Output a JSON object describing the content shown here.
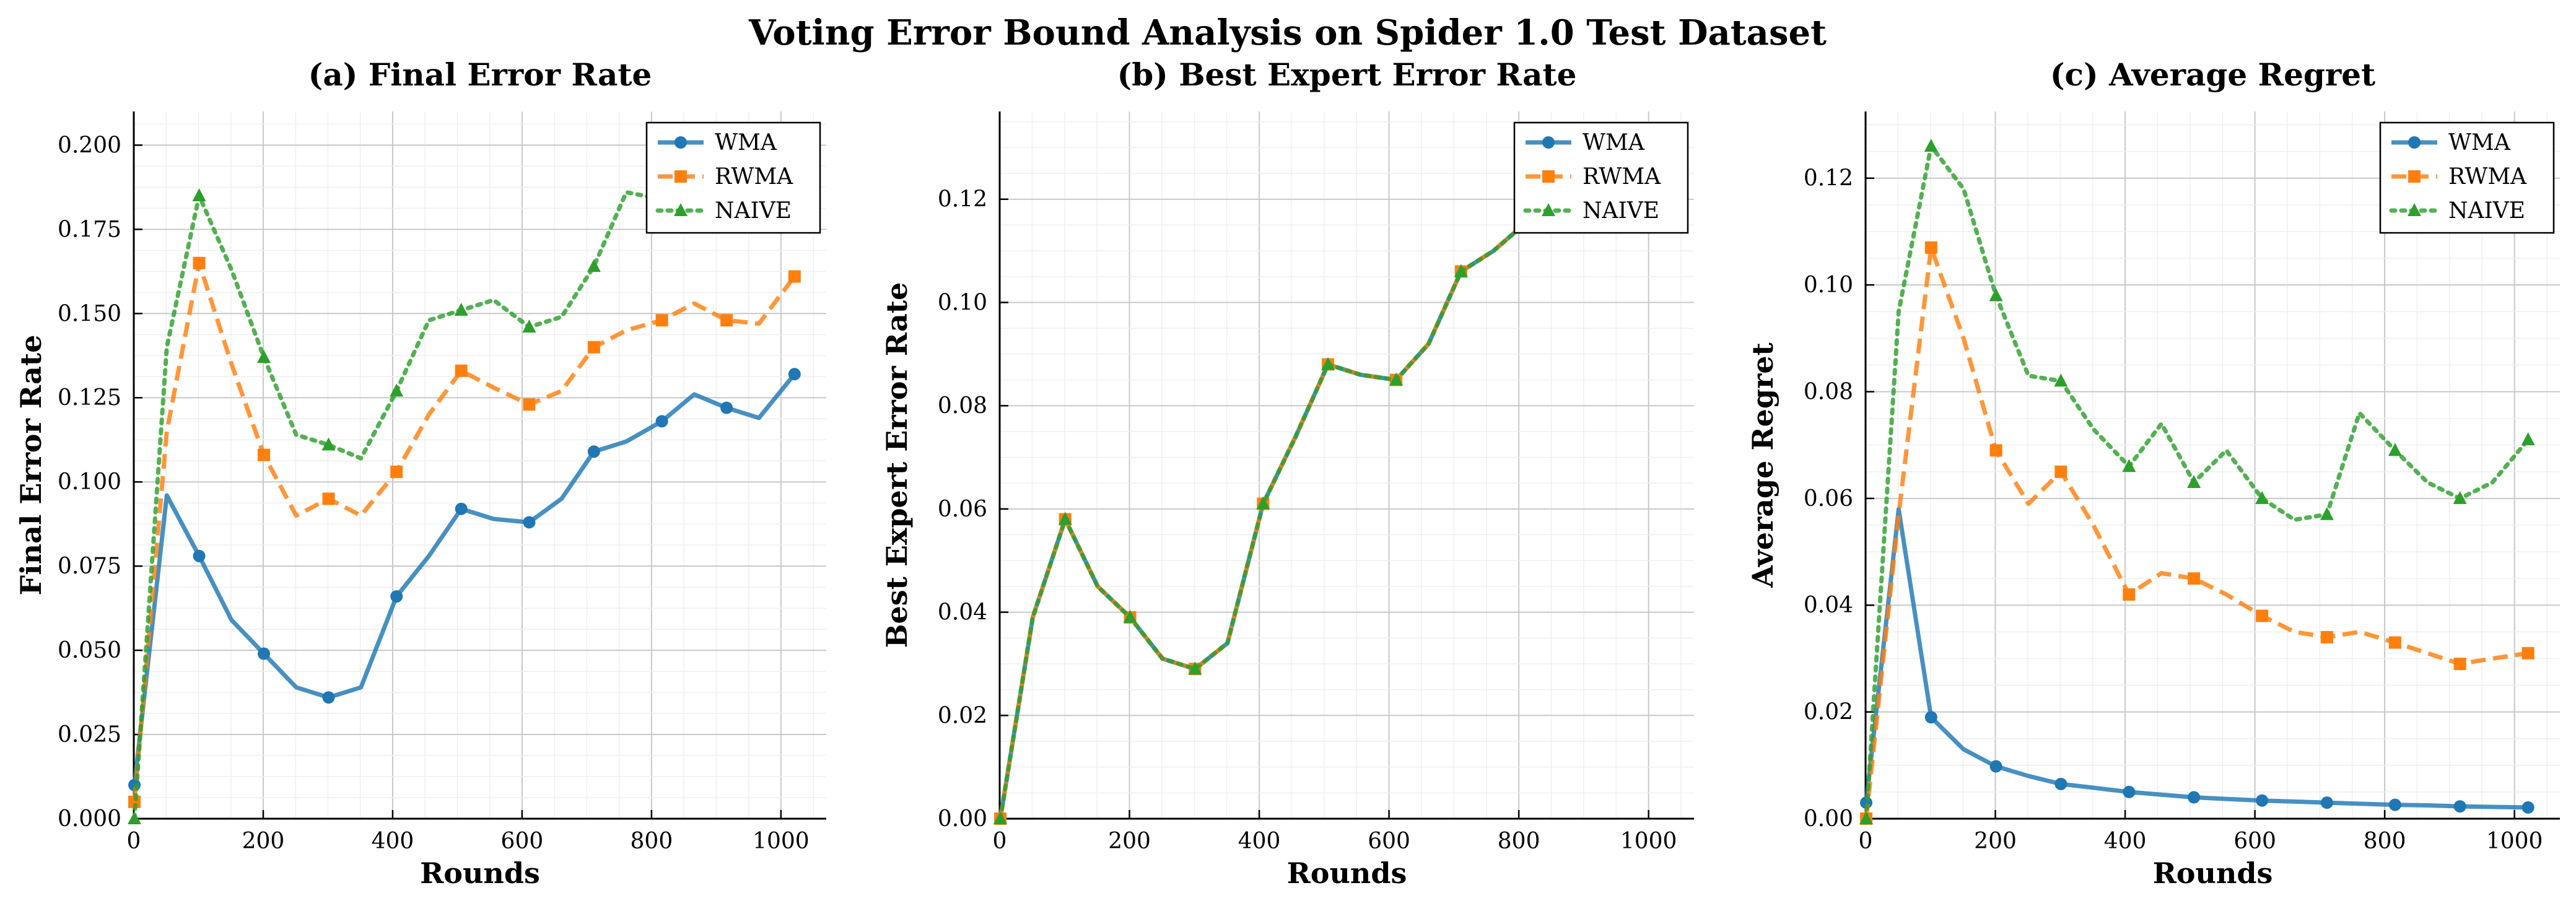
{
  "figure": {
    "title": "Voting Error Bound Analysis on Spider 1.0 Test Dataset"
  },
  "chart_data": [
    {
      "type": "line",
      "title": "(a) Final Error Rate",
      "xlabel": "Rounds",
      "ylabel": "Final Error Rate",
      "xlim": [
        0,
        1070
      ],
      "ylim": [
        0,
        0.21
      ],
      "xticks": [
        "0",
        "200",
        "400",
        "600",
        "800",
        "1000"
      ],
      "yticks": [
        "0.000",
        "0.025",
        "0.050",
        "0.075",
        "0.100",
        "0.125",
        "0.150",
        "0.175",
        "0.200"
      ],
      "grid": true,
      "legend_position": "top-right",
      "series": [
        {
          "name": "WMA",
          "color": "#1f77b4",
          "marker": "circle",
          "linestyle": "solid",
          "x": [
            1,
            51,
            101,
            151,
            201,
            251,
            301,
            351,
            406,
            456,
            506,
            556,
            611,
            661,
            711,
            761,
            816,
            866,
            916,
            966,
            1021
          ],
          "y": [
            0.01,
            0.096,
            0.078,
            0.059,
            0.049,
            0.039,
            0.036,
            0.039,
            0.066,
            0.078,
            0.092,
            0.089,
            0.088,
            0.095,
            0.109,
            0.112,
            0.118,
            0.126,
            0.122,
            0.119,
            0.132
          ]
        },
        {
          "name": "RWMA",
          "color": "#ff7f0e",
          "marker": "square",
          "linestyle": "dashed",
          "x": [
            1,
            51,
            101,
            151,
            201,
            251,
            301,
            351,
            406,
            456,
            506,
            556,
            611,
            661,
            711,
            761,
            816,
            866,
            916,
            966,
            1021
          ],
          "y": [
            0.005,
            0.115,
            0.165,
            0.135,
            0.108,
            0.09,
            0.095,
            0.09,
            0.103,
            0.12,
            0.133,
            0.128,
            0.123,
            0.127,
            0.14,
            0.145,
            0.148,
            0.153,
            0.148,
            0.147,
            0.161
          ]
        },
        {
          "name": "NAIVE",
          "color": "#2ca02c",
          "marker": "triangle",
          "linestyle": "dotted",
          "x": [
            1,
            51,
            101,
            151,
            201,
            251,
            301,
            351,
            406,
            456,
            506,
            556,
            611,
            661,
            711,
            761,
            816,
            866,
            916,
            966,
            1021
          ],
          "y": [
            0.0,
            0.14,
            0.185,
            0.163,
            0.137,
            0.114,
            0.111,
            0.107,
            0.127,
            0.148,
            0.151,
            0.154,
            0.146,
            0.149,
            0.164,
            0.186,
            0.184,
            0.191,
            0.195,
            0.197,
            0.2
          ]
        }
      ]
    },
    {
      "type": "line",
      "title": "(b) Best Expert Error Rate",
      "xlabel": "Rounds",
      "ylabel": "Best Expert Error Rate",
      "xlim": [
        0,
        1070
      ],
      "ylim": [
        0,
        0.137
      ],
      "xticks": [
        "0",
        "200",
        "400",
        "600",
        "800",
        "1000"
      ],
      "yticks": [
        "0.00",
        "0.02",
        "0.04",
        "0.06",
        "0.08",
        "0.10",
        "0.12"
      ],
      "grid": true,
      "legend_position": "top-right",
      "series": [
        {
          "name": "WMA",
          "color": "#1f77b4",
          "marker": "circle",
          "linestyle": "solid",
          "x": [
            1,
            51,
            101,
            151,
            201,
            251,
            301,
            351,
            406,
            456,
            506,
            556,
            611,
            661,
            711,
            761,
            816,
            866,
            916,
            966,
            1021
          ],
          "y": [
            0.0,
            0.039,
            0.058,
            0.045,
            0.039,
            0.031,
            0.029,
            0.034,
            0.061,
            0.074,
            0.088,
            0.086,
            0.085,
            0.092,
            0.106,
            0.11,
            0.116,
            0.123,
            0.12,
            0.126,
            0.13
          ]
        },
        {
          "name": "RWMA",
          "color": "#ff7f0e",
          "marker": "square",
          "linestyle": "dashed",
          "x": [
            1,
            51,
            101,
            151,
            201,
            251,
            301,
            351,
            406,
            456,
            506,
            556,
            611,
            661,
            711,
            761,
            816,
            866,
            916,
            966,
            1021
          ],
          "y": [
            0.0,
            0.039,
            0.058,
            0.045,
            0.039,
            0.031,
            0.029,
            0.034,
            0.061,
            0.074,
            0.088,
            0.086,
            0.085,
            0.092,
            0.106,
            0.11,
            0.116,
            0.123,
            0.12,
            0.126,
            0.13
          ]
        },
        {
          "name": "NAIVE",
          "color": "#2ca02c",
          "marker": "triangle",
          "linestyle": "dotted",
          "x": [
            1,
            51,
            101,
            151,
            201,
            251,
            301,
            351,
            406,
            456,
            506,
            556,
            611,
            661,
            711,
            761,
            816,
            866,
            916,
            966,
            1021
          ],
          "y": [
            0.0,
            0.039,
            0.058,
            0.045,
            0.039,
            0.031,
            0.029,
            0.034,
            0.061,
            0.074,
            0.088,
            0.086,
            0.085,
            0.092,
            0.106,
            0.11,
            0.116,
            0.123,
            0.12,
            0.126,
            0.13
          ]
        }
      ]
    },
    {
      "type": "line",
      "title": "(c) Average Regret",
      "xlabel": "Rounds",
      "ylabel": "Average Regret",
      "xlim": [
        0,
        1070
      ],
      "ylim": [
        0,
        0.1325
      ],
      "xticks": [
        "0",
        "200",
        "400",
        "600",
        "800",
        "1000"
      ],
      "yticks": [
        "0.00",
        "0.02",
        "0.04",
        "0.06",
        "0.08",
        "0.10",
        "0.12"
      ],
      "grid": true,
      "legend_position": "top-right",
      "series": [
        {
          "name": "WMA",
          "color": "#1f77b4",
          "marker": "circle",
          "linestyle": "solid",
          "x": [
            1,
            51,
            101,
            151,
            201,
            251,
            301,
            351,
            406,
            456,
            506,
            556,
            611,
            661,
            711,
            761,
            816,
            866,
            916,
            966,
            1021
          ],
          "y": [
            0.003,
            0.058,
            0.019,
            0.013,
            0.0098,
            0.008,
            0.0065,
            0.0058,
            0.005,
            0.0045,
            0.004,
            0.0037,
            0.0034,
            0.0032,
            0.003,
            0.0028,
            0.0026,
            0.0025,
            0.0023,
            0.0022,
            0.0021
          ]
        },
        {
          "name": "RWMA",
          "color": "#ff7f0e",
          "marker": "square",
          "linestyle": "dashed",
          "x": [
            1,
            51,
            101,
            151,
            201,
            251,
            301,
            351,
            406,
            456,
            506,
            556,
            611,
            661,
            711,
            761,
            816,
            866,
            916,
            966,
            1021
          ],
          "y": [
            0.0,
            0.057,
            0.107,
            0.09,
            0.069,
            0.059,
            0.065,
            0.055,
            0.042,
            0.046,
            0.045,
            0.042,
            0.038,
            0.035,
            0.034,
            0.035,
            0.033,
            0.031,
            0.029,
            0.03,
            0.031
          ]
        },
        {
          "name": "NAIVE",
          "color": "#2ca02c",
          "marker": "triangle",
          "linestyle": "dotted",
          "x": [
            1,
            51,
            101,
            151,
            201,
            251,
            301,
            351,
            406,
            456,
            506,
            556,
            611,
            661,
            711,
            761,
            816,
            866,
            916,
            966,
            1021
          ],
          "y": [
            0.0,
            0.095,
            0.126,
            0.118,
            0.098,
            0.083,
            0.082,
            0.073,
            0.066,
            0.074,
            0.063,
            0.069,
            0.06,
            0.056,
            0.057,
            0.076,
            0.069,
            0.063,
            0.06,
            0.063,
            0.071
          ]
        }
      ]
    }
  ]
}
